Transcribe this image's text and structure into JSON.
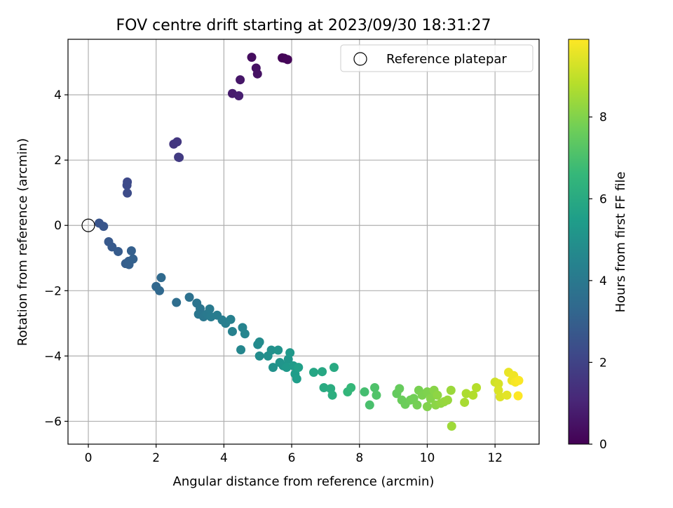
{
  "chart_data": {
    "type": "scatter",
    "title": "FOV centre drift starting at 2023/09/30 18:31:27",
    "xlabel": "Angular distance from reference (arcmin)",
    "ylabel": "Rotation from reference (arcmin)",
    "xlim": [
      -0.6,
      13.3
    ],
    "ylim": [
      -6.7,
      5.7
    ],
    "xticks": [
      0,
      2,
      4,
      6,
      8,
      10,
      12
    ],
    "yticks": [
      -6,
      -4,
      -2,
      0,
      2,
      4
    ],
    "xtick_labels": [
      "0",
      "2",
      "4",
      "6",
      "8",
      "10",
      "12"
    ],
    "ytick_labels": [
      "−6",
      "−4",
      "−2",
      "0",
      "2",
      "4"
    ],
    "grid": true,
    "legend": {
      "placement": "top-right",
      "entries": [
        "Reference platepar"
      ]
    },
    "reference_point": {
      "x": 0,
      "y": 0
    },
    "colorbar": {
      "label": "Hours from first FF file",
      "range": [
        0,
        9.9
      ],
      "ticks": [
        0,
        2,
        4,
        6,
        8
      ],
      "tick_labels": [
        "0",
        "2",
        "4",
        "6",
        "8"
      ],
      "colormap": "viridis",
      "colormap_stops": [
        "#440154",
        "#482878",
        "#3e4989",
        "#31688e",
        "#26828e",
        "#1f9e89",
        "#35b779",
        "#6ece58",
        "#b5de2b",
        "#fde725"
      ]
    },
    "series": [
      {
        "points": [
          {
            "x": 5.72,
            "y": 5.13,
            "c": 0.05
          },
          {
            "x": 5.78,
            "y": 5.12,
            "c": 0.1
          },
          {
            "x": 5.88,
            "y": 5.08,
            "c": 0.15
          },
          {
            "x": 4.82,
            "y": 5.15,
            "c": 0.35
          },
          {
            "x": 4.95,
            "y": 4.82,
            "c": 0.45
          },
          {
            "x": 4.99,
            "y": 4.64,
            "c": 0.5
          },
          {
            "x": 4.48,
            "y": 4.46,
            "c": 0.6
          },
          {
            "x": 4.25,
            "y": 4.04,
            "c": 0.75
          },
          {
            "x": 4.44,
            "y": 3.97,
            "c": 0.85
          },
          {
            "x": 2.52,
            "y": 2.49,
            "c": 1.55
          },
          {
            "x": 2.62,
            "y": 2.56,
            "c": 1.6
          },
          {
            "x": 2.66,
            "y": 2.09,
            "c": 1.7
          },
          {
            "x": 2.68,
            "y": 2.08,
            "c": 1.72
          },
          {
            "x": 1.15,
            "y": 1.33,
            "c": 2.2
          },
          {
            "x": 1.14,
            "y": 1.23,
            "c": 2.25
          },
          {
            "x": 1.15,
            "y": 0.99,
            "c": 2.3
          },
          {
            "x": 0.32,
            "y": 0.07,
            "c": 2.6
          },
          {
            "x": 0.45,
            "y": -0.03,
            "c": 2.65
          },
          {
            "x": 0.6,
            "y": -0.5,
            "c": 2.75
          },
          {
            "x": 0.7,
            "y": -0.66,
            "c": 2.8
          },
          {
            "x": 0.88,
            "y": -0.8,
            "c": 2.85
          },
          {
            "x": 1.1,
            "y": -1.17,
            "c": 2.95
          },
          {
            "x": 1.19,
            "y": -1.1,
            "c": 2.98
          },
          {
            "x": 1.2,
            "y": -1.2,
            "c": 3.0
          },
          {
            "x": 1.27,
            "y": -0.78,
            "c": 3.0
          },
          {
            "x": 1.32,
            "y": -1.03,
            "c": 3.05
          },
          {
            "x": 2.0,
            "y": -1.87,
            "c": 3.3
          },
          {
            "x": 2.1,
            "y": -2.0,
            "c": 3.35
          },
          {
            "x": 2.15,
            "y": -1.6,
            "c": 3.4
          },
          {
            "x": 2.6,
            "y": -2.36,
            "c": 3.55
          },
          {
            "x": 2.98,
            "y": -2.2,
            "c": 3.7
          },
          {
            "x": 3.2,
            "y": -2.38,
            "c": 3.8
          },
          {
            "x": 3.3,
            "y": -2.55,
            "c": 3.85
          },
          {
            "x": 3.25,
            "y": -2.72,
            "c": 3.9
          },
          {
            "x": 3.4,
            "y": -2.8,
            "c": 3.95
          },
          {
            "x": 3.5,
            "y": -2.72,
            "c": 4.0
          },
          {
            "x": 3.58,
            "y": -2.56,
            "c": 4.05
          },
          {
            "x": 3.62,
            "y": -2.8,
            "c": 4.1
          },
          {
            "x": 3.8,
            "y": -2.75,
            "c": 4.15
          },
          {
            "x": 3.95,
            "y": -2.9,
            "c": 4.2
          },
          {
            "x": 4.05,
            "y": -3.0,
            "c": 4.25
          },
          {
            "x": 4.2,
            "y": -2.88,
            "c": 4.3
          },
          {
            "x": 4.25,
            "y": -3.25,
            "c": 4.35
          },
          {
            "x": 4.55,
            "y": -3.13,
            "c": 4.45
          },
          {
            "x": 4.62,
            "y": -3.32,
            "c": 4.5
          },
          {
            "x": 4.5,
            "y": -3.81,
            "c": 4.55
          },
          {
            "x": 5.0,
            "y": -3.65,
            "c": 4.7
          },
          {
            "x": 5.05,
            "y": -3.57,
            "c": 4.75
          },
          {
            "x": 5.05,
            "y": -4.0,
            "c": 4.8
          },
          {
            "x": 5.3,
            "y": -4.0,
            "c": 4.9
          },
          {
            "x": 5.4,
            "y": -3.82,
            "c": 4.95
          },
          {
            "x": 5.45,
            "y": -4.35,
            "c": 5.0
          },
          {
            "x": 5.6,
            "y": -3.82,
            "c": 5.05
          },
          {
            "x": 5.65,
            "y": -4.2,
            "c": 5.1
          },
          {
            "x": 5.75,
            "y": -4.3,
            "c": 5.15
          },
          {
            "x": 5.9,
            "y": -4.1,
            "c": 5.2
          },
          {
            "x": 5.95,
            "y": -3.9,
            "c": 5.25
          },
          {
            "x": 5.85,
            "y": -4.35,
            "c": 5.3
          },
          {
            "x": 6.05,
            "y": -4.3,
            "c": 5.4
          },
          {
            "x": 6.1,
            "y": -4.55,
            "c": 5.45
          },
          {
            "x": 6.15,
            "y": -4.7,
            "c": 5.5
          },
          {
            "x": 6.2,
            "y": -4.35,
            "c": 5.6
          },
          {
            "x": 6.65,
            "y": -4.5,
            "c": 5.85
          },
          {
            "x": 6.9,
            "y": -4.48,
            "c": 5.9
          },
          {
            "x": 7.25,
            "y": -4.35,
            "c": 6.0
          },
          {
            "x": 6.95,
            "y": -4.97,
            "c": 6.05
          },
          {
            "x": 7.15,
            "y": -5.0,
            "c": 6.1
          },
          {
            "x": 7.2,
            "y": -5.2,
            "c": 6.2
          },
          {
            "x": 7.65,
            "y": -5.1,
            "c": 6.5
          },
          {
            "x": 7.75,
            "y": -4.97,
            "c": 6.6
          },
          {
            "x": 8.15,
            "y": -5.1,
            "c": 6.9
          },
          {
            "x": 8.3,
            "y": -5.5,
            "c": 7.0
          },
          {
            "x": 8.45,
            "y": -4.97,
            "c": 7.1
          },
          {
            "x": 8.5,
            "y": -5.2,
            "c": 7.15
          },
          {
            "x": 9.1,
            "y": -5.15,
            "c": 7.5
          },
          {
            "x": 9.18,
            "y": -5.0,
            "c": 7.55
          },
          {
            "x": 9.25,
            "y": -5.35,
            "c": 7.6
          },
          {
            "x": 9.35,
            "y": -5.48,
            "c": 7.65
          },
          {
            "x": 9.5,
            "y": -5.35,
            "c": 7.7
          },
          {
            "x": 9.6,
            "y": -5.3,
            "c": 7.75
          },
          {
            "x": 9.7,
            "y": -5.5,
            "c": 7.8
          },
          {
            "x": 9.75,
            "y": -5.05,
            "c": 7.85
          },
          {
            "x": 9.85,
            "y": -5.2,
            "c": 7.9
          },
          {
            "x": 10.0,
            "y": -5.1,
            "c": 7.95
          },
          {
            "x": 10.0,
            "y": -5.55,
            "c": 8.0
          },
          {
            "x": 10.1,
            "y": -5.3,
            "c": 8.05
          },
          {
            "x": 10.2,
            "y": -5.05,
            "c": 8.1
          },
          {
            "x": 10.25,
            "y": -5.5,
            "c": 8.15
          },
          {
            "x": 10.3,
            "y": -5.2,
            "c": 8.2
          },
          {
            "x": 10.4,
            "y": -5.45,
            "c": 8.25
          },
          {
            "x": 10.5,
            "y": -5.4,
            "c": 8.3
          },
          {
            "x": 10.6,
            "y": -5.35,
            "c": 8.35
          },
          {
            "x": 10.7,
            "y": -5.05,
            "c": 8.4
          },
          {
            "x": 10.72,
            "y": -6.15,
            "c": 8.45
          },
          {
            "x": 11.1,
            "y": -5.42,
            "c": 8.6
          },
          {
            "x": 11.15,
            "y": -5.15,
            "c": 8.65
          },
          {
            "x": 11.35,
            "y": -5.2,
            "c": 8.75
          },
          {
            "x": 11.45,
            "y": -4.97,
            "c": 8.8
          },
          {
            "x": 12.0,
            "y": -4.8,
            "c": 9.2
          },
          {
            "x": 12.1,
            "y": -4.85,
            "c": 9.3
          },
          {
            "x": 12.1,
            "y": -5.05,
            "c": 9.35
          },
          {
            "x": 12.15,
            "y": -5.25,
            "c": 9.4
          },
          {
            "x": 12.35,
            "y": -5.2,
            "c": 9.5
          },
          {
            "x": 12.4,
            "y": -4.5,
            "c": 9.6
          },
          {
            "x": 12.5,
            "y": -4.75,
            "c": 9.65
          },
          {
            "x": 12.55,
            "y": -4.6,
            "c": 9.7
          },
          {
            "x": 12.6,
            "y": -4.8,
            "c": 9.8
          },
          {
            "x": 12.7,
            "y": -4.75,
            "c": 9.85
          },
          {
            "x": 12.68,
            "y": -5.22,
            "c": 9.9
          }
        ]
      }
    ]
  }
}
